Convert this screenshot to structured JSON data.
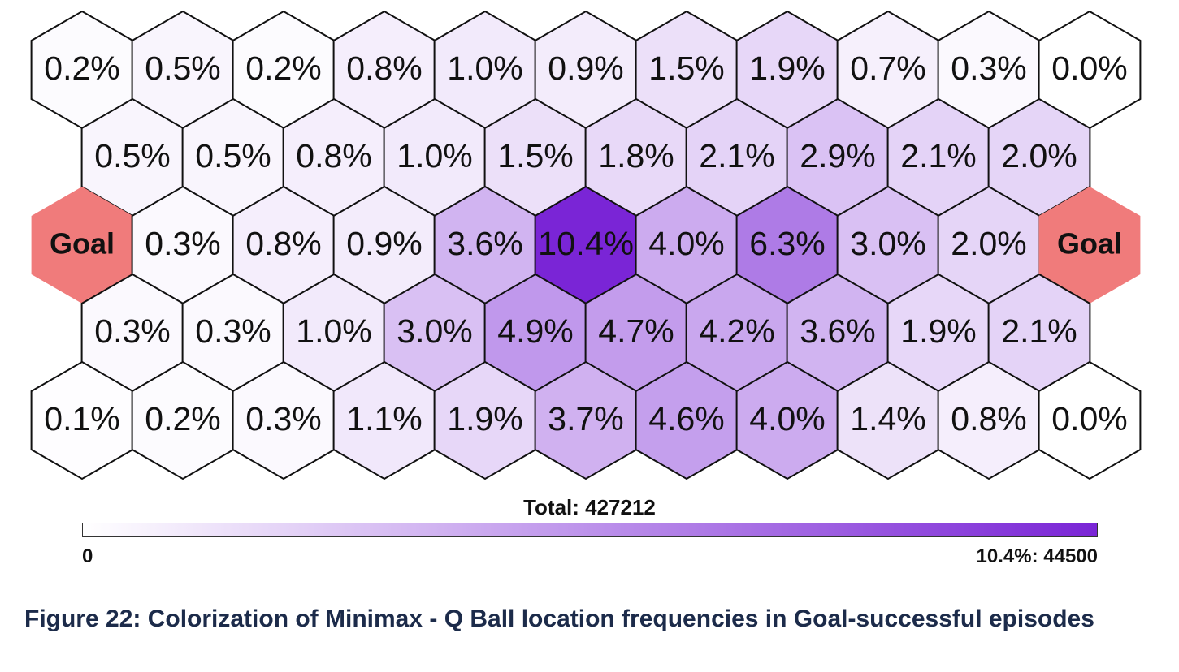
{
  "chart_data": {
    "type": "heatmap",
    "grid": "hexagonal",
    "colors": {
      "low": "#ffffff",
      "high": "#7a25d6",
      "goal": "#f07b7b"
    },
    "rows": [
      [
        "0.2%",
        "0.5%",
        "0.2%",
        "0.8%",
        "1.0%",
        "0.9%",
        "1.5%",
        "1.9%",
        "0.7%",
        "0.3%",
        "0.0%"
      ],
      [
        "0.5%",
        "0.5%",
        "0.8%",
        "1.0%",
        "1.5%",
        "1.8%",
        "2.1%",
        "2.9%",
        "2.1%",
        "2.0%"
      ],
      [
        "Goal",
        "0.3%",
        "0.8%",
        "0.9%",
        "3.6%",
        "10.4%",
        "4.0%",
        "6.3%",
        "3.0%",
        "2.0%",
        "Goal"
      ],
      [
        "0.3%",
        "0.3%",
        "1.0%",
        "3.0%",
        "4.9%",
        "4.7%",
        "4.2%",
        "3.6%",
        "1.9%",
        "2.1%"
      ],
      [
        "0.1%",
        "0.2%",
        "0.3%",
        "1.1%",
        "1.9%",
        "3.7%",
        "4.6%",
        "4.0%",
        "1.4%",
        "0.8%",
        "0.0%"
      ]
    ],
    "colorbar": {
      "min_label": "0",
      "max_label": "10.4%: 44500",
      "max_value": 10.4
    },
    "total_label": "Total: 427212"
  },
  "caption": "Figure 22: Colorization of Minimax - Q Ball location frequencies in Goal-successful episodes"
}
